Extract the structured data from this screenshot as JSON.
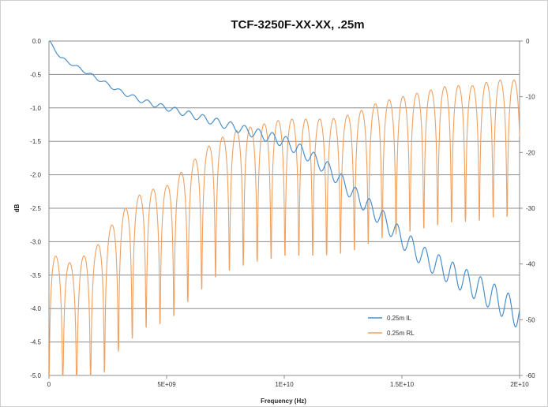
{
  "chart_data": {
    "type": "line",
    "title": "TCF-3250F-XX-XX, .25m",
    "xlabel": "Frequency (Hz)",
    "ylabel": "dB",
    "y2label": "",
    "xlim": [
      0,
      20000000000
    ],
    "ylim": [
      -5.0,
      0.0
    ],
    "y2lim": [
      -60,
      0
    ],
    "grid": true,
    "legend_position": "lower-right",
    "x_ticks": [
      0,
      5000000000,
      10000000000,
      15000000000,
      20000000000
    ],
    "x_tick_labels": [
      "0",
      "5E+09",
      "1E+10",
      "1.5E+10",
      "2E+10"
    ],
    "y_ticks": [
      0.0,
      -0.5,
      -1.0,
      -1.5,
      -2.0,
      -2.5,
      -3.0,
      -3.5,
      -4.0,
      -4.5,
      -5.0
    ],
    "y_tick_labels": [
      "0.0",
      "-0.5",
      "-1.0",
      "-1.5",
      "-2.0",
      "-2.5",
      "-3.0",
      "-3.5",
      "-4.0",
      "-4.5",
      "-5.0"
    ],
    "y2_ticks": [
      0,
      -10,
      -20,
      -30,
      -40,
      -50,
      -60
    ],
    "y2_tick_labels": [
      "0",
      "-10",
      "-20",
      "-30",
      "-40",
      "-50",
      "-60"
    ],
    "series": [
      {
        "name": "0.25m IL",
        "axis": "left",
        "color": "#4a8fcc",
        "x": [
          0,
          500000000,
          1000000000,
          2000000000,
          3000000000,
          4000000000,
          5000000000,
          6000000000,
          7000000000,
          8000000000,
          9000000000,
          10000000000,
          11000000000,
          12000000000,
          13000000000,
          14000000000,
          15000000000,
          16000000000,
          17000000000,
          18000000000,
          19000000000,
          20000000000
        ],
        "y": [
          0.0,
          -0.25,
          -0.35,
          -0.55,
          -0.75,
          -0.9,
          -1.0,
          -1.1,
          -1.2,
          -1.3,
          -1.4,
          -1.5,
          -1.7,
          -1.95,
          -2.3,
          -2.6,
          -2.95,
          -3.25,
          -3.45,
          -3.65,
          -3.85,
          -4.1
        ]
      },
      {
        "name": "0.25m RL",
        "axis": "right",
        "color": "#f0a060",
        "x": [
          0,
          1000000000,
          2000000000,
          3000000000,
          4000000000,
          5000000000,
          6000000000,
          7000000000,
          8000000000,
          9000000000,
          10000000000,
          11000000000,
          12000000000,
          13000000000,
          14000000000,
          15000000000,
          16000000000,
          17000000000,
          18000000000,
          19000000000,
          20000000000
        ],
        "y": [
          -38,
          -40,
          -37,
          -31,
          -27,
          -26,
          -22,
          -18,
          -16,
          -15,
          -14,
          -14,
          -14,
          -13,
          -11,
          -10,
          -9,
          -8,
          -8,
          -7,
          -7
        ]
      }
    ]
  }
}
